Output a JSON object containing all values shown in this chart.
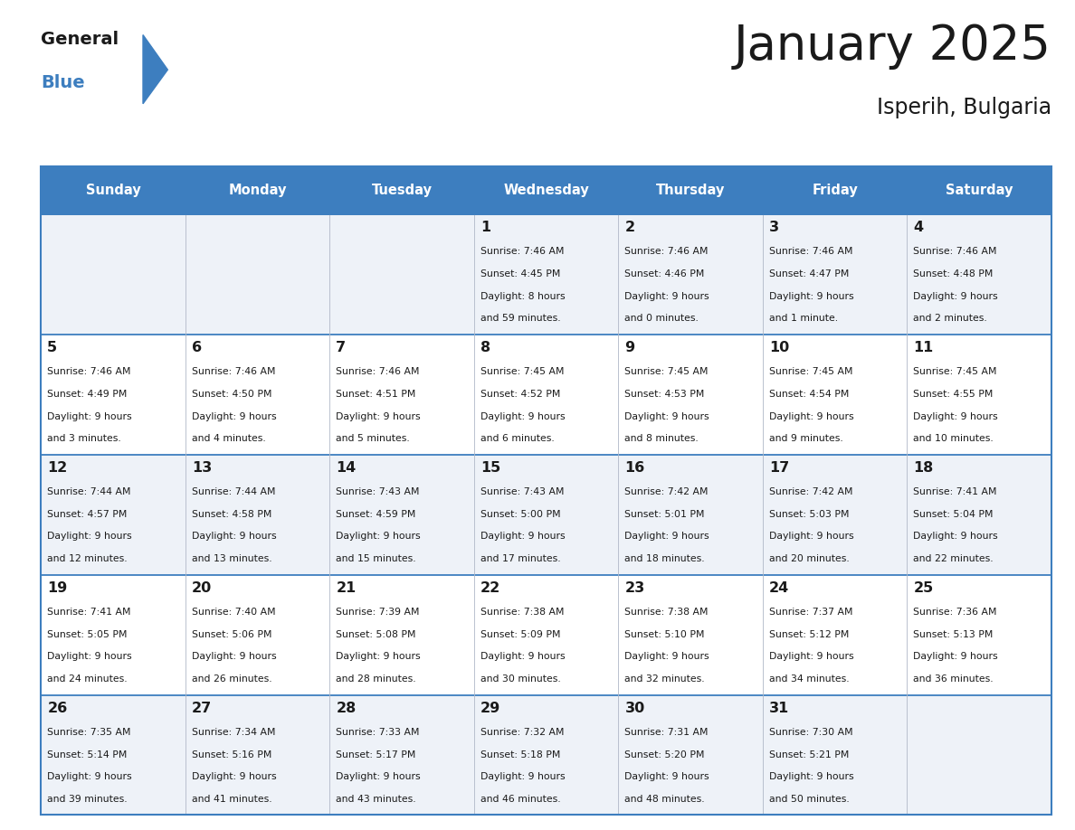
{
  "title": "January 2025",
  "subtitle": "Isperih, Bulgaria",
  "header_color": "#3d7ebf",
  "header_text_color": "#FFFFFF",
  "row_bg_odd": "#eef2f8",
  "row_bg_even": "#FFFFFF",
  "border_color": "#3d7ebf",
  "text_color": "#1a1a1a",
  "day_names": [
    "Sunday",
    "Monday",
    "Tuesday",
    "Wednesday",
    "Thursday",
    "Friday",
    "Saturday"
  ],
  "title_fontsize": 38,
  "subtitle_fontsize": 17,
  "logo_general_color": "#1a1a1a",
  "logo_blue_color": "#3d7ebf",
  "logo_triangle_color": "#3d7ebf",
  "days": [
    {
      "date": 1,
      "col": 3,
      "row": 0,
      "sunrise": "7:46 AM",
      "sunset": "4:45 PM",
      "daylight": "8 hours and 59 minutes."
    },
    {
      "date": 2,
      "col": 4,
      "row": 0,
      "sunrise": "7:46 AM",
      "sunset": "4:46 PM",
      "daylight": "9 hours and 0 minutes."
    },
    {
      "date": 3,
      "col": 5,
      "row": 0,
      "sunrise": "7:46 AM",
      "sunset": "4:47 PM",
      "daylight": "9 hours and 1 minute."
    },
    {
      "date": 4,
      "col": 6,
      "row": 0,
      "sunrise": "7:46 AM",
      "sunset": "4:48 PM",
      "daylight": "9 hours and 2 minutes."
    },
    {
      "date": 5,
      "col": 0,
      "row": 1,
      "sunrise": "7:46 AM",
      "sunset": "4:49 PM",
      "daylight": "9 hours and 3 minutes."
    },
    {
      "date": 6,
      "col": 1,
      "row": 1,
      "sunrise": "7:46 AM",
      "sunset": "4:50 PM",
      "daylight": "9 hours and 4 minutes."
    },
    {
      "date": 7,
      "col": 2,
      "row": 1,
      "sunrise": "7:46 AM",
      "sunset": "4:51 PM",
      "daylight": "9 hours and 5 minutes."
    },
    {
      "date": 8,
      "col": 3,
      "row": 1,
      "sunrise": "7:45 AM",
      "sunset": "4:52 PM",
      "daylight": "9 hours and 6 minutes."
    },
    {
      "date": 9,
      "col": 4,
      "row": 1,
      "sunrise": "7:45 AM",
      "sunset": "4:53 PM",
      "daylight": "9 hours and 8 minutes."
    },
    {
      "date": 10,
      "col": 5,
      "row": 1,
      "sunrise": "7:45 AM",
      "sunset": "4:54 PM",
      "daylight": "9 hours and 9 minutes."
    },
    {
      "date": 11,
      "col": 6,
      "row": 1,
      "sunrise": "7:45 AM",
      "sunset": "4:55 PM",
      "daylight": "9 hours and 10 minutes."
    },
    {
      "date": 12,
      "col": 0,
      "row": 2,
      "sunrise": "7:44 AM",
      "sunset": "4:57 PM",
      "daylight": "9 hours and 12 minutes."
    },
    {
      "date": 13,
      "col": 1,
      "row": 2,
      "sunrise": "7:44 AM",
      "sunset": "4:58 PM",
      "daylight": "9 hours and 13 minutes."
    },
    {
      "date": 14,
      "col": 2,
      "row": 2,
      "sunrise": "7:43 AM",
      "sunset": "4:59 PM",
      "daylight": "9 hours and 15 minutes."
    },
    {
      "date": 15,
      "col": 3,
      "row": 2,
      "sunrise": "7:43 AM",
      "sunset": "5:00 PM",
      "daylight": "9 hours and 17 minutes."
    },
    {
      "date": 16,
      "col": 4,
      "row": 2,
      "sunrise": "7:42 AM",
      "sunset": "5:01 PM",
      "daylight": "9 hours and 18 minutes."
    },
    {
      "date": 17,
      "col": 5,
      "row": 2,
      "sunrise": "7:42 AM",
      "sunset": "5:03 PM",
      "daylight": "9 hours and 20 minutes."
    },
    {
      "date": 18,
      "col": 6,
      "row": 2,
      "sunrise": "7:41 AM",
      "sunset": "5:04 PM",
      "daylight": "9 hours and 22 minutes."
    },
    {
      "date": 19,
      "col": 0,
      "row": 3,
      "sunrise": "7:41 AM",
      "sunset": "5:05 PM",
      "daylight": "9 hours and 24 minutes."
    },
    {
      "date": 20,
      "col": 1,
      "row": 3,
      "sunrise": "7:40 AM",
      "sunset": "5:06 PM",
      "daylight": "9 hours and 26 minutes."
    },
    {
      "date": 21,
      "col": 2,
      "row": 3,
      "sunrise": "7:39 AM",
      "sunset": "5:08 PM",
      "daylight": "9 hours and 28 minutes."
    },
    {
      "date": 22,
      "col": 3,
      "row": 3,
      "sunrise": "7:38 AM",
      "sunset": "5:09 PM",
      "daylight": "9 hours and 30 minutes."
    },
    {
      "date": 23,
      "col": 4,
      "row": 3,
      "sunrise": "7:38 AM",
      "sunset": "5:10 PM",
      "daylight": "9 hours and 32 minutes."
    },
    {
      "date": 24,
      "col": 5,
      "row": 3,
      "sunrise": "7:37 AM",
      "sunset": "5:12 PM",
      "daylight": "9 hours and 34 minutes."
    },
    {
      "date": 25,
      "col": 6,
      "row": 3,
      "sunrise": "7:36 AM",
      "sunset": "5:13 PM",
      "daylight": "9 hours and 36 minutes."
    },
    {
      "date": 26,
      "col": 0,
      "row": 4,
      "sunrise": "7:35 AM",
      "sunset": "5:14 PM",
      "daylight": "9 hours and 39 minutes."
    },
    {
      "date": 27,
      "col": 1,
      "row": 4,
      "sunrise": "7:34 AM",
      "sunset": "5:16 PM",
      "daylight": "9 hours and 41 minutes."
    },
    {
      "date": 28,
      "col": 2,
      "row": 4,
      "sunrise": "7:33 AM",
      "sunset": "5:17 PM",
      "daylight": "9 hours and 43 minutes."
    },
    {
      "date": 29,
      "col": 3,
      "row": 4,
      "sunrise": "7:32 AM",
      "sunset": "5:18 PM",
      "daylight": "9 hours and 46 minutes."
    },
    {
      "date": 30,
      "col": 4,
      "row": 4,
      "sunrise": "7:31 AM",
      "sunset": "5:20 PM",
      "daylight": "9 hours and 48 minutes."
    },
    {
      "date": 31,
      "col": 5,
      "row": 4,
      "sunrise": "7:30 AM",
      "sunset": "5:21 PM",
      "daylight": "9 hours and 50 minutes."
    }
  ]
}
